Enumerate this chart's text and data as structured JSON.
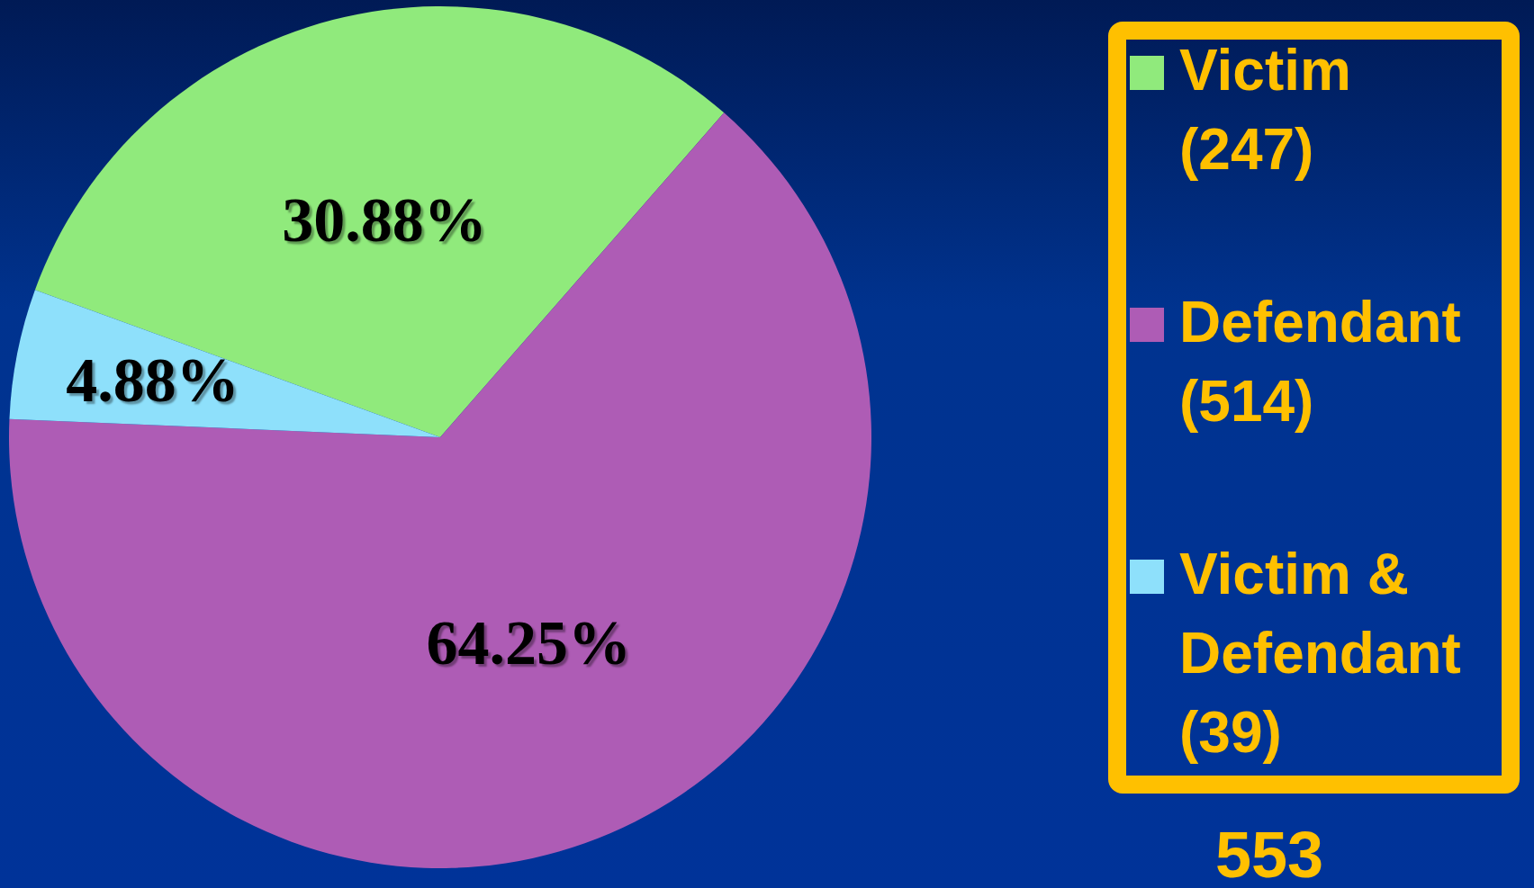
{
  "chart_data": {
    "type": "pie",
    "categories": [
      "Victim (247)",
      "Defendant (514)",
      "Victim & Defendant (39)"
    ],
    "values": [
      30.88,
      64.25,
      4.88
    ],
    "colors": [
      "#90ea7c",
      "#ae5cb5",
      "#8ee0fb"
    ],
    "value_labels": [
      "30.88%",
      "64.25%",
      "4.88%"
    ],
    "legend": "right",
    "annotations": [
      "553"
    ]
  }
}
